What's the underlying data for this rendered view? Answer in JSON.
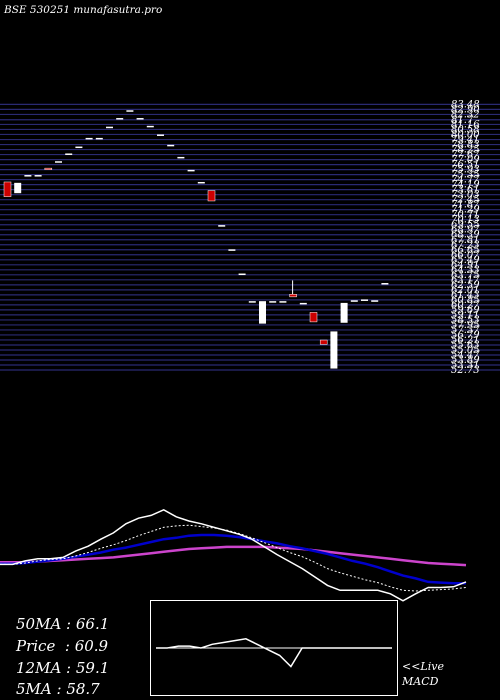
{
  "header": {
    "title": "BSE 530251 munafasutra.pro"
  },
  "colors": {
    "background": "#000000",
    "grid_line": "#2a2a72",
    "up_candle": "#ffffff",
    "down_candle": "#cc0000",
    "ma_black": "#000000",
    "ma_white": "#ffffff",
    "ma_blue": "#0000cc",
    "ma_magenta": "#cc44cc",
    "axis_text": "#ffffff"
  },
  "chart_data": {
    "type": "candlestick",
    "title": "BSE 530251 munafasutra.pro",
    "y_axis": {
      "min": 52.5,
      "max": 84.8,
      "tick_labels": [
        "83.48",
        "82.90",
        "82.32",
        "81.7",
        "81.16",
        "80.58",
        "80.00",
        "79.41",
        "78.83",
        "78.25",
        "77.67",
        "77.09",
        "76.51",
        "75.93",
        "75.35",
        "74.77",
        "74.19",
        "73.61",
        "73.03",
        "72.45",
        "71.87",
        "71.29",
        "70.71",
        "70.13",
        "69.55",
        "68.97",
        "68.39",
        "67.81",
        "67.23",
        "66.65",
        "66.07",
        "65.49",
        "64.91",
        "64.33",
        "63.75",
        "63.17",
        "62.59",
        "62.01",
        "61.43",
        "60.85",
        "60.27",
        "59.69",
        "59.11",
        "58.53",
        "57.95",
        "57.37",
        "56.79",
        "56.21",
        "55.63",
        "55.05",
        "54.47",
        "53.89",
        "53.31",
        "52.73"
      ]
    },
    "candles": [
      {
        "open": 74.5,
        "close": 72.8,
        "high": 74.5,
        "low": 72.8
      },
      {
        "open": 73.2,
        "close": 74.4,
        "high": 74.4,
        "low": 73.2
      },
      {
        "open": 75.3,
        "close": 75.3,
        "high": 75.3,
        "low": 75.3
      },
      {
        "open": 75.3,
        "close": 75.3,
        "high": 75.3,
        "low": 75.3
      },
      {
        "open": 76.1,
        "close": 76.0,
        "high": 76.1,
        "low": 76.0
      },
      {
        "open": 76.9,
        "close": 76.9,
        "high": 76.9,
        "low": 76.9
      },
      {
        "open": 77.8,
        "close": 77.8,
        "high": 77.8,
        "low": 77.8
      },
      {
        "open": 78.6,
        "close": 78.6,
        "high": 78.6,
        "low": 78.6
      },
      {
        "open": 79.6,
        "close": 79.6,
        "high": 79.6,
        "low": 79.6
      },
      {
        "open": 79.6,
        "close": 79.6,
        "high": 79.6,
        "low": 79.6
      },
      {
        "open": 80.9,
        "close": 80.9,
        "high": 80.9,
        "low": 80.9
      },
      {
        "open": 81.9,
        "close": 81.9,
        "high": 81.9,
        "low": 81.9
      },
      {
        "open": 82.8,
        "close": 82.8,
        "high": 82.8,
        "low": 82.8
      },
      {
        "open": 81.9,
        "close": 81.9,
        "high": 81.9,
        "low": 81.9
      },
      {
        "open": 81.0,
        "close": 81.0,
        "high": 81.0,
        "low": 81.0
      },
      {
        "open": 80.0,
        "close": 80.0,
        "high": 80.0,
        "low": 80.0
      },
      {
        "open": 78.8,
        "close": 78.8,
        "high": 78.8,
        "low": 78.8
      },
      {
        "open": 77.4,
        "close": 77.4,
        "high": 77.4,
        "low": 77.4
      },
      {
        "open": 75.9,
        "close": 75.9,
        "high": 75.9,
        "low": 75.9
      },
      {
        "open": 74.5,
        "close": 74.5,
        "high": 74.5,
        "low": 74.5
      },
      {
        "open": 73.5,
        "close": 72.3,
        "high": 73.5,
        "low": 72.3
      },
      {
        "open": 69.5,
        "close": 69.5,
        "high": 69.5,
        "low": 69.5
      },
      {
        "open": 66.7,
        "close": 66.7,
        "high": 66.7,
        "low": 66.7
      },
      {
        "open": 63.9,
        "close": 63.9,
        "high": 63.9,
        "low": 63.9
      },
      {
        "open": 60.7,
        "close": 60.7,
        "high": 60.7,
        "low": 60.7
      },
      {
        "open": 58.1,
        "close": 60.7,
        "high": 60.7,
        "low": 58.1
      },
      {
        "open": 60.7,
        "close": 60.7,
        "high": 60.7,
        "low": 60.7
      },
      {
        "open": 60.7,
        "close": 60.7,
        "high": 60.7,
        "low": 60.7
      },
      {
        "open": 61.5,
        "close": 61.2,
        "high": 63.1,
        "low": 61.2
      },
      {
        "open": 60.5,
        "close": 60.5,
        "high": 60.5,
        "low": 60.5
      },
      {
        "open": 59.4,
        "close": 58.3,
        "high": 59.4,
        "low": 58.3
      },
      {
        "open": 56.2,
        "close": 55.7,
        "high": 56.2,
        "low": 55.7
      },
      {
        "open": 52.9,
        "close": 57.2,
        "high": 57.2,
        "low": 52.9
      },
      {
        "open": 58.2,
        "close": 60.5,
        "high": 60.5,
        "low": 58.2
      },
      {
        "open": 60.8,
        "close": 60.8,
        "high": 60.8,
        "low": 60.8
      },
      {
        "open": 60.9,
        "close": 60.9,
        "high": 60.9,
        "low": 60.9
      },
      {
        "open": 60.8,
        "close": 60.8,
        "high": 60.8,
        "low": 60.8
      },
      {
        "open": 62.8,
        "close": 62.8,
        "high": 62.8,
        "low": 62.8
      }
    ],
    "moving_averages": {
      "ma5": [
        54.8,
        54.8,
        55.3,
        55.6,
        55.6,
        55.8,
        56.7,
        57.4,
        58.4,
        59.3,
        60.6,
        61.4,
        61.8,
        62.6,
        61.6,
        61.0,
        60.6,
        60.1,
        59.6,
        59.1,
        58.4,
        57.3,
        56.2,
        55.2,
        54.2,
        53.0,
        51.8,
        51.1,
        51.1,
        51.1,
        51.1,
        50.6,
        49.6,
        50.6,
        51.5,
        51.5,
        51.6,
        52.3
      ],
      "ma12": [
        54.8,
        54.8,
        55.0,
        55.3,
        55.5,
        55.6,
        56.0,
        56.5,
        57.1,
        57.6,
        58.2,
        58.9,
        59.5,
        60.1,
        60.3,
        60.4,
        60.2,
        60.0,
        59.7,
        59.2,
        58.6,
        57.9,
        57.2,
        56.5,
        55.9,
        55.1,
        54.2,
        53.6,
        53.1,
        52.6,
        52.2,
        51.6,
        51.1,
        51.0,
        51.1,
        51.2,
        51.3,
        51.5
      ],
      "ma20": [
        54.9,
        54.9,
        55.0,
        55.2,
        55.4,
        55.6,
        55.9,
        56.2,
        56.5,
        56.9,
        57.2,
        57.6,
        58.0,
        58.4,
        58.6,
        58.9,
        59.0,
        59.0,
        58.9,
        58.7,
        58.4,
        58.1,
        57.8,
        57.4,
        57.1,
        56.7,
        56.3,
        55.8,
        55.3,
        54.9,
        54.4,
        53.8,
        53.2,
        52.8,
        52.3,
        52.2,
        52.1,
        52.1
      ],
      "ma50": [
        55.1,
        55.1,
        55.1,
        55.2,
        55.3,
        55.4,
        55.5,
        55.6,
        55.7,
        55.8,
        56.0,
        56.2,
        56.4,
        56.6,
        56.8,
        57.0,
        57.1,
        57.2,
        57.3,
        57.3,
        57.3,
        57.3,
        57.2,
        57.1,
        57.0,
        56.8,
        56.6,
        56.4,
        56.2,
        56.0,
        55.8,
        55.6,
        55.4,
        55.2,
        55.0,
        54.9,
        54.8,
        54.7
      ]
    },
    "macd": {
      "line": [
        0.0,
        0.0,
        0.05,
        0.05,
        0.0,
        0.1,
        0.15,
        0.2,
        0.25,
        0.1,
        -0.05,
        -0.2,
        -0.5,
        0.0,
        0.0,
        0.0,
        0.0,
        0.0,
        0.0,
        0.0,
        0.0,
        0.0
      ],
      "signal": [
        0.0,
        0.0,
        0.0,
        0.0,
        0.0,
        0.0,
        0.0,
        0.0,
        0.0,
        0.0,
        0.0,
        0.0,
        0.0,
        0.0,
        0.0,
        0.0,
        0.0,
        0.0,
        0.0,
        0.0,
        0.0,
        0.0
      ],
      "ylim": [
        -1,
        1
      ]
    }
  },
  "stats": {
    "ma50": "50MA : 66.1",
    "price": "Price  : 60.9",
    "ma12": "12MA : 59.1",
    "ma5": "5MA : 58.7"
  },
  "labels": {
    "live": "<<Live",
    "macd": "MACD"
  }
}
